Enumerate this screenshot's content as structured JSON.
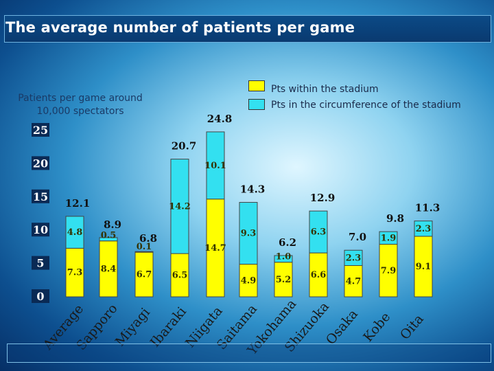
{
  "title": "The average number of patients per game",
  "note": "Patients per game around 10,000 spectators",
  "legend": {
    "within": "Pts within the stadium",
    "circumference": "Pts in the circumference of the stadium"
  },
  "colors": {
    "within": "#ffff00",
    "circumference": "#33e0f0",
    "title_bar": "#0b4a86"
  },
  "chart_data": {
    "type": "bar",
    "stacked": true,
    "title": "The average number of patients per game",
    "ylabel": "Patients per game around 10,000 spectators",
    "ylim": [
      0,
      25
    ],
    "yticks": [
      "0",
      "5",
      "10",
      "15",
      "20",
      "25"
    ],
    "categories": [
      "Average",
      "Sapporo",
      "Miyagi",
      "Ibaraki",
      "Niigata",
      "Saitama",
      "Yokohama",
      "Shizuoka",
      "Osaka",
      "Kobe",
      "Oita"
    ],
    "series": [
      {
        "name": "Pts within the stadium",
        "values": [
          7.3,
          8.4,
          6.7,
          6.5,
          14.7,
          4.9,
          5.2,
          6.6,
          4.7,
          7.9,
          9.1
        ],
        "labels": [
          "7.3",
          "8.4",
          "6.7",
          "6.5",
          "14.7",
          "4.9",
          "5.2",
          "6.6",
          "4.7",
          "7.9",
          "9.1"
        ]
      },
      {
        "name": "Pts in the circumference of the stadium",
        "values": [
          4.8,
          0.5,
          0.1,
          14.2,
          10.1,
          9.3,
          1.0,
          6.3,
          2.3,
          1.9,
          2.3
        ],
        "labels": [
          "4.8",
          "0.5",
          "0.1",
          "14.2",
          "10.1",
          "9.3",
          "1.0",
          "6.3",
          "2.3",
          "1.9",
          "2.3"
        ]
      }
    ],
    "totals": [
      "12.1",
      "8.9",
      "6.8",
      "20.7",
      "24.8",
      "14.3",
      "6.2",
      "12.9",
      "7.0",
      "9.8",
      "11.3"
    ]
  }
}
